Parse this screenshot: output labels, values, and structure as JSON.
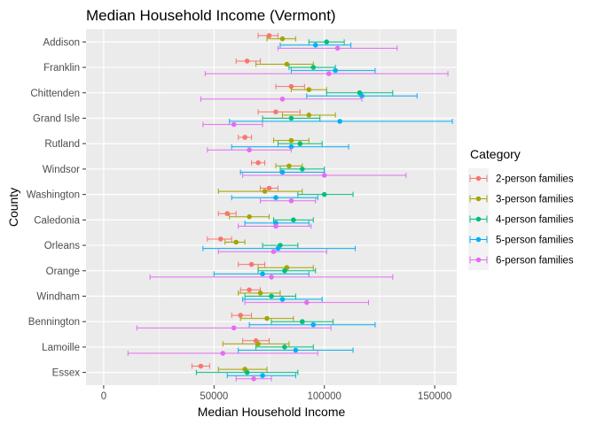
{
  "chart_data": {
    "type": "scatter",
    "title": "Median Household Income (Vermont)",
    "xlabel": "Median Household Income",
    "ylabel": "County",
    "xlim": [
      -8000,
      160000
    ],
    "x_ticks": [
      0,
      50000,
      100000,
      150000
    ],
    "x_tick_labels": [
      "0",
      "50000",
      "100000",
      "150000"
    ],
    "grid": true,
    "legend": {
      "title": "Category",
      "position": "right",
      "entries": [
        {
          "name": "2-person families",
          "color": "#F8766D"
        },
        {
          "name": "3-person families",
          "color": "#A3A500"
        },
        {
          "name": "4-person families",
          "color": "#00BF7D"
        },
        {
          "name": "5-person families",
          "color": "#00B0F6"
        },
        {
          "name": "6-person families",
          "color": "#E76BF3"
        }
      ]
    },
    "categories": [
      "Addison",
      "Franklin",
      "Chittenden",
      "Grand Isle",
      "Rutland",
      "Windsor",
      "Washington",
      "Caledonia",
      "Orleans",
      "Orange",
      "Windham",
      "Bennington",
      "Lamoille",
      "Essex"
    ],
    "series": [
      {
        "name": "2-person families",
        "color": "#F8766D",
        "values": [
          75000,
          65000,
          85000,
          78000,
          64000,
          70000,
          75000,
          56000,
          53000,
          67000,
          66000,
          62000,
          69000,
          44000
        ],
        "lower": [
          70000,
          60000,
          78000,
          70000,
          61000,
          67000,
          71000,
          52000,
          47000,
          61000,
          62000,
          58000,
          63000,
          40000
        ],
        "upper": [
          79000,
          71000,
          91000,
          89000,
          67000,
          73000,
          79000,
          60000,
          58000,
          73000,
          71000,
          67000,
          75000,
          48000
        ]
      },
      {
        "name": "3-person families",
        "color": "#A3A500",
        "values": [
          81000,
          83000,
          93000,
          93000,
          85000,
          84000,
          73000,
          66000,
          60000,
          83000,
          71000,
          74000,
          70000,
          64000
        ],
        "lower": [
          74000,
          69000,
          85000,
          81000,
          77000,
          78000,
          52000,
          57000,
          55000,
          70000,
          61000,
          62000,
          54000,
          52000
        ],
        "upper": [
          87000,
          95000,
          101000,
          105000,
          93000,
          90000,
          90000,
          75000,
          64000,
          95000,
          80000,
          86000,
          84000,
          74000
        ]
      },
      {
        "name": "4-person families",
        "color": "#00BF7D",
        "values": [
          101000,
          95000,
          116000,
          85000,
          89000,
          90000,
          100000,
          86000,
          80000,
          82000,
          76000,
          90000,
          82000,
          65000
        ],
        "lower": [
          93000,
          84000,
          101000,
          72000,
          79000,
          80000,
          88000,
          77000,
          72000,
          70000,
          64000,
          76000,
          69000,
          42000
        ],
        "upper": [
          109000,
          105000,
          131000,
          98000,
          99000,
          100000,
          113000,
          95000,
          88000,
          96000,
          87000,
          104000,
          95000,
          88000
        ]
      },
      {
        "name": "5-person families",
        "color": "#00B0F6",
        "values": [
          96000,
          105000,
          117000,
          107000,
          85000,
          81000,
          78000,
          78000,
          79000,
          72000,
          81000,
          95000,
          87000,
          72000
        ],
        "lower": [
          80000,
          85000,
          92000,
          57000,
          58000,
          62000,
          58000,
          64000,
          45000,
          50000,
          63000,
          66000,
          61000,
          56000
        ],
        "upper": [
          112000,
          123000,
          142000,
          158000,
          111000,
          100000,
          97000,
          93000,
          114000,
          93000,
          99000,
          123000,
          113000,
          87000
        ]
      },
      {
        "name": "6-person families",
        "color": "#E76BF3",
        "values": [
          106000,
          102000,
          81000,
          59000,
          66000,
          100000,
          85000,
          78000,
          77000,
          76000,
          92000,
          59000,
          54000,
          68000
        ],
        "lower": [
          79000,
          46000,
          44000,
          45000,
          47000,
          63000,
          71000,
          61000,
          52000,
          21000,
          64000,
          15000,
          11000,
          60000
        ],
        "upper": [
          133000,
          156000,
          117000,
          72000,
          85000,
          137000,
          96000,
          94000,
          101000,
          131000,
          120000,
          103000,
          97000,
          76000
        ]
      }
    ]
  }
}
